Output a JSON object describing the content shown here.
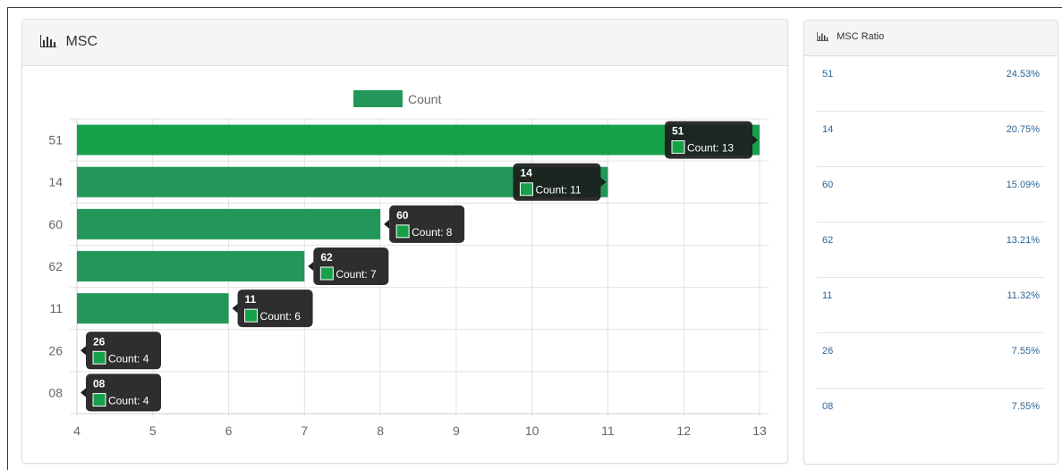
{
  "panel": {
    "title": "MSC"
  },
  "ratio_panel": {
    "title": "MSC Ratio",
    "items": [
      {
        "label": "51",
        "value": "24.53%"
      },
      {
        "label": "14",
        "value": "20.75%"
      },
      {
        "label": "60",
        "value": "15.09%"
      },
      {
        "label": "62",
        "value": "13.21%"
      },
      {
        "label": "11",
        "value": "11.32%"
      },
      {
        "label": "26",
        "value": "7.55%"
      },
      {
        "label": "08",
        "value": "7.55%"
      }
    ]
  },
  "colors": {
    "bar": "#16a04a",
    "bar_alt": "#23975a",
    "tooltip_bg": "#1c1c1c",
    "link": "#2a6496"
  },
  "chart_data": {
    "type": "bar",
    "orientation": "horizontal",
    "categories": [
      "51",
      "14",
      "60",
      "62",
      "11",
      "26",
      "08"
    ],
    "series": [
      {
        "name": "Count",
        "values": [
          13,
          11,
          8,
          7,
          6,
          4,
          4
        ]
      }
    ],
    "xlim": [
      4,
      13
    ],
    "xticks": [
      4,
      5,
      6,
      7,
      8,
      9,
      10,
      11,
      12,
      13
    ],
    "legend": "top-center",
    "grid": true,
    "tooltip_label": "Count"
  }
}
